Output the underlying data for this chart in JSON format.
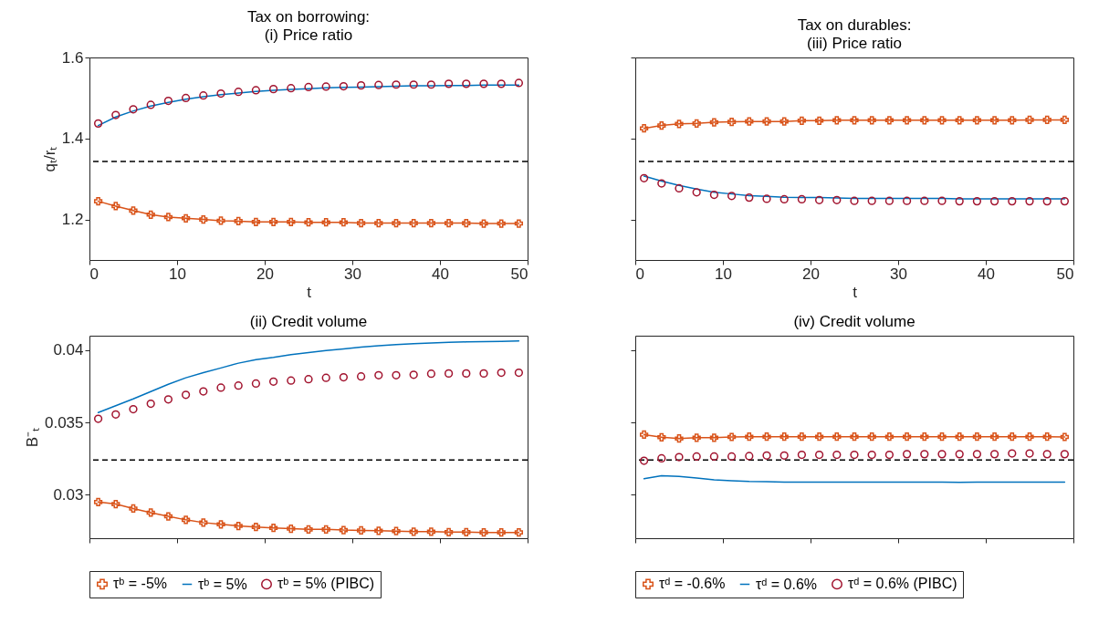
{
  "chart_data": [
    {
      "type": "line",
      "title": "Tax on borrowing:",
      "subtitle": "(i) Price ratio",
      "xlabel": "t",
      "ylabel": "qₜ/rₜ",
      "xlim": [
        0,
        50
      ],
      "xticks": [
        0,
        10,
        20,
        30,
        40,
        50
      ],
      "ylim": [
        1.1,
        1.6
      ],
      "yticks": [
        1.2,
        1.4,
        1.6
      ],
      "grid": false,
      "legend": false,
      "x": [
        1,
        3,
        5,
        7,
        9,
        11,
        13,
        15,
        17,
        19,
        21,
        23,
        25,
        27,
        29,
        31,
        33,
        35,
        37,
        39,
        41,
        43,
        45,
        47,
        49
      ],
      "series": [
        {
          "type": "line",
          "color": "#d95319",
          "marker": "cross",
          "line_style": "solid",
          "values": [
            1.245,
            1.233,
            1.222,
            1.212,
            1.206,
            1.203,
            1.2,
            1.197,
            1.196,
            1.194,
            1.194,
            1.194,
            1.193,
            1.193,
            1.193,
            1.191,
            1.191,
            1.191,
            1.191,
            1.191,
            1.191,
            1.191,
            1.19,
            1.19,
            1.19
          ]
        },
        {
          "type": "line",
          "color": "#0072bd",
          "marker": "none",
          "line_style": "solid",
          "values": [
            1.432,
            1.453,
            1.468,
            1.48,
            1.489,
            1.497,
            1.503,
            1.508,
            1.512,
            1.516,
            1.519,
            1.521,
            1.523,
            1.525,
            1.526,
            1.527,
            1.528,
            1.529,
            1.53,
            1.53,
            1.531,
            1.531,
            1.532,
            1.532,
            1.532
          ]
        },
        {
          "type": "scatter",
          "color": "#a2142f",
          "marker": "circle",
          "values": [
            1.437,
            1.458,
            1.472,
            1.483,
            1.493,
            1.5,
            1.506,
            1.511,
            1.515,
            1.519,
            1.522,
            1.524,
            1.527,
            1.528,
            1.529,
            1.531,
            1.532,
            1.533,
            1.533,
            1.533,
            1.535,
            1.535,
            1.535,
            1.535,
            1.537
          ]
        }
      ],
      "ref_lines": [
        {
          "axis": "y",
          "value": 1.343,
          "color": "#000000",
          "line_style": "dashed"
        }
      ]
    },
    {
      "type": "line",
      "title": "Tax on durables:",
      "subtitle": "(iii) Price ratio",
      "xlabel": "t",
      "xlim": [
        0,
        50
      ],
      "xticks": [
        0,
        10,
        20,
        30,
        40,
        50
      ],
      "ylim": [
        1.1,
        1.6
      ],
      "yticks": [
        1.2,
        1.4,
        1.6
      ],
      "tick_labels": "x",
      "grid": false,
      "legend": false,
      "x": [
        1,
        3,
        5,
        7,
        9,
        11,
        13,
        15,
        17,
        19,
        21,
        23,
        25,
        27,
        29,
        31,
        33,
        35,
        37,
        39,
        41,
        43,
        45,
        47,
        49
      ],
      "series": [
        {
          "type": "line",
          "color": "#d95319",
          "marker": "cross",
          "line_style": "solid",
          "values": [
            1.425,
            1.432,
            1.436,
            1.437,
            1.44,
            1.441,
            1.442,
            1.442,
            1.442,
            1.444,
            1.444,
            1.445,
            1.445,
            1.445,
            1.445,
            1.445,
            1.445,
            1.445,
            1.445,
            1.445,
            1.445,
            1.445,
            1.446,
            1.446,
            1.446
          ]
        },
        {
          "type": "line",
          "color": "#0072bd",
          "marker": "none",
          "line_style": "solid",
          "values": [
            1.307,
            1.295,
            1.284,
            1.275,
            1.267,
            1.263,
            1.259,
            1.257,
            1.255,
            1.254,
            1.254,
            1.253,
            1.252,
            1.252,
            1.252,
            1.252,
            1.252,
            1.252,
            1.251,
            1.251,
            1.251,
            1.251,
            1.251,
            1.251,
            1.251
          ]
        },
        {
          "type": "scatter",
          "color": "#a2142f",
          "marker": "circle",
          "values": [
            1.302,
            1.289,
            1.277,
            1.267,
            1.261,
            1.258,
            1.254,
            1.251,
            1.25,
            1.25,
            1.248,
            1.248,
            1.246,
            1.246,
            1.246,
            1.246,
            1.246,
            1.246,
            1.245,
            1.245,
            1.245,
            1.245,
            1.245,
            1.245,
            1.245
          ]
        }
      ],
      "ref_lines": [
        {
          "axis": "y",
          "value": 1.343,
          "color": "#000000",
          "line_style": "dashed"
        }
      ]
    },
    {
      "type": "line",
      "title": "(ii) Credit volume",
      "ylabel": "B⁻ₜ",
      "xlim": [
        0,
        50
      ],
      "xticks": [
        {
          "value": 0,
          "label": null
        },
        {
          "value": 10,
          "label": null
        },
        {
          "value": 20,
          "label": null
        },
        {
          "value": 30,
          "label": null
        },
        {
          "value": 40,
          "label": null
        },
        {
          "value": 50,
          "label": null
        }
      ],
      "ylim": [
        0.027,
        0.041
      ],
      "yticks": [
        0.03,
        0.035,
        0.04
      ],
      "tick_labels": "y",
      "grid": false,
      "legend": "bottom",
      "x": [
        1,
        3,
        5,
        7,
        9,
        11,
        13,
        15,
        17,
        19,
        21,
        23,
        25,
        27,
        29,
        31,
        33,
        35,
        37,
        39,
        41,
        43,
        45,
        47,
        49
      ],
      "series": [
        {
          "name": "τᵇ = -5%",
          "type": "line",
          "color": "#d95319",
          "marker": "cross",
          "line_style": "solid",
          "values": [
            0.0295,
            0.02936,
            0.02905,
            0.02877,
            0.02851,
            0.02827,
            0.02808,
            0.02796,
            0.02785,
            0.02778,
            0.02771,
            0.02766,
            0.02761,
            0.02761,
            0.02756,
            0.02754,
            0.02752,
            0.02749,
            0.02745,
            0.02745,
            0.02742,
            0.02742,
            0.0274,
            0.0274,
            0.0274
          ]
        },
        {
          "name": "τᵇ = 5%",
          "type": "line",
          "color": "#0072bd",
          "marker": "none",
          "line_style": "solid",
          "values": [
            0.03569,
            0.03616,
            0.03663,
            0.03714,
            0.03764,
            0.03809,
            0.03844,
            0.03877,
            0.0391,
            0.03934,
            0.0395,
            0.03969,
            0.03983,
            0.03998,
            0.04009,
            0.04021,
            0.04031,
            0.04038,
            0.04045,
            0.0405,
            0.04054,
            0.04057,
            0.04059,
            0.04061,
            0.04064
          ]
        },
        {
          "name": "τᵇ = 5% (PIBC)",
          "type": "scatter",
          "color": "#a2142f",
          "marker": "circle",
          "values": [
            0.03526,
            0.03556,
            0.03592,
            0.0363,
            0.0366,
            0.03691,
            0.03715,
            0.03741,
            0.03755,
            0.03769,
            0.03783,
            0.0379,
            0.03799,
            0.03809,
            0.03813,
            0.03818,
            0.03827,
            0.03827,
            0.0383,
            0.03837,
            0.03839,
            0.03839,
            0.03839,
            0.03844,
            0.03844
          ]
        }
      ],
      "ref_lines": [
        {
          "axis": "y",
          "value": 0.0324,
          "color": "#000000",
          "line_style": "dashed"
        }
      ]
    },
    {
      "type": "line",
      "title": "(iv) Credit volume",
      "xlim": [
        0,
        50
      ],
      "xticks": [
        {
          "value": 0,
          "label": null
        },
        {
          "value": 10,
          "label": null
        },
        {
          "value": 20,
          "label": null
        },
        {
          "value": 30,
          "label": null
        },
        {
          "value": 40,
          "label": null
        },
        {
          "value": 50,
          "label": null
        }
      ],
      "ylim": [
        0.027,
        0.041
      ],
      "yticks": [
        0.03,
        0.035,
        0.04
      ],
      "tick_labels": false,
      "grid": false,
      "legend": "bottom",
      "x": [
        1,
        3,
        5,
        7,
        9,
        11,
        13,
        15,
        17,
        19,
        21,
        23,
        25,
        27,
        29,
        31,
        33,
        35,
        37,
        39,
        41,
        43,
        45,
        47,
        49
      ],
      "series": [
        {
          "name": "τᵈ = -0.6%",
          "type": "line",
          "color": "#d95319",
          "marker": "cross",
          "line_style": "solid",
          "values": [
            0.03416,
            0.03398,
            0.03389,
            0.03395,
            0.03395,
            0.034,
            0.03402,
            0.03402,
            0.03402,
            0.03402,
            0.03402,
            0.03402,
            0.03402,
            0.03402,
            0.03402,
            0.03402,
            0.03402,
            0.03402,
            0.03402,
            0.03402,
            0.03402,
            0.03402,
            0.03402,
            0.03402,
            0.034
          ]
        },
        {
          "name": "τᵈ = 0.6%",
          "type": "line",
          "color": "#0072bd",
          "marker": "none",
          "line_style": "solid",
          "values": [
            0.03111,
            0.03132,
            0.03127,
            0.03116,
            0.03104,
            0.03098,
            0.03093,
            0.03091,
            0.03088,
            0.03088,
            0.03088,
            0.03088,
            0.03088,
            0.03088,
            0.03088,
            0.03088,
            0.03088,
            0.03088,
            0.03086,
            0.03088,
            0.03088,
            0.03088,
            0.03088,
            0.03088,
            0.03088
          ]
        },
        {
          "name": "τᵈ = 0.6% (PIBC)",
          "type": "scatter",
          "color": "#a2142f",
          "marker": "circle",
          "values": [
            0.03236,
            0.03252,
            0.03261,
            0.03265,
            0.03265,
            0.03265,
            0.03268,
            0.03272,
            0.03272,
            0.03277,
            0.03277,
            0.03277,
            0.03277,
            0.03277,
            0.03277,
            0.03281,
            0.03281,
            0.03281,
            0.03281,
            0.03281,
            0.03281,
            0.03286,
            0.03286,
            0.03281,
            0.03281
          ]
        }
      ],
      "ref_lines": [
        {
          "axis": "y",
          "value": 0.0324,
          "color": "#000000",
          "line_style": "dashed"
        }
      ]
    }
  ]
}
